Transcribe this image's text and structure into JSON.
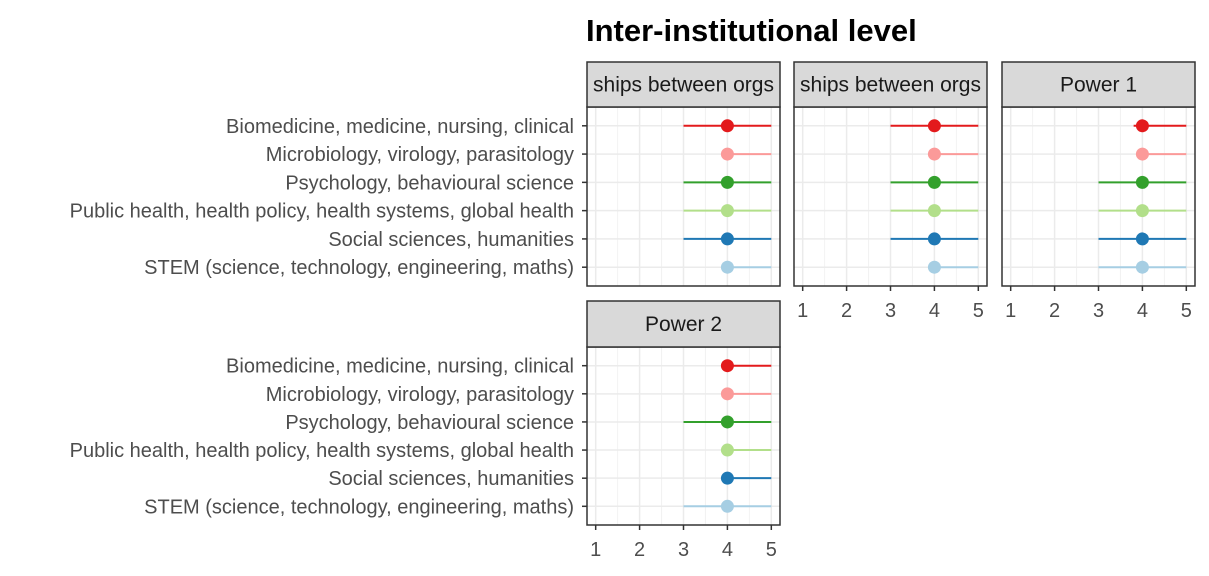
{
  "chart_data": {
    "type": "scatter",
    "title": "Inter-institutional level",
    "xlim": [
      1,
      5
    ],
    "x_ticks": [
      "1",
      "2",
      "3",
      "4",
      "5"
    ],
    "categories": [
      "Biomedicine, medicine, nursing, clinical",
      "Microbiology, virology, parasitology",
      "Psychology, behavioural science",
      "Public health, health policy, health systems, global health",
      "Social sciences, humanities",
      "STEM (science, technology, engineering, maths)"
    ],
    "colors": [
      "#e31a1c",
      "#fb9a99",
      "#33a02c",
      "#b2df8a",
      "#1f78b4",
      "#a6cee3"
    ],
    "grid": true,
    "legend": "none",
    "panels": [
      {
        "strip": "ships between orgs",
        "points": [
          {
            "median": 4,
            "low": 3,
            "high": 5
          },
          {
            "median": 4,
            "low": 4,
            "high": 5
          },
          {
            "median": 4,
            "low": 3,
            "high": 5
          },
          {
            "median": 4,
            "low": 3,
            "high": 5
          },
          {
            "median": 4,
            "low": 3,
            "high": 5
          },
          {
            "median": 4,
            "low": 4,
            "high": 5
          }
        ]
      },
      {
        "strip": "ships between orgs",
        "points": [
          {
            "median": 4,
            "low": 3,
            "high": 5
          },
          {
            "median": 4,
            "low": 4,
            "high": 5
          },
          {
            "median": 4,
            "low": 3,
            "high": 5
          },
          {
            "median": 4,
            "low": 3,
            "high": 5
          },
          {
            "median": 4,
            "low": 3,
            "high": 5
          },
          {
            "median": 4,
            "low": 4,
            "high": 5
          }
        ]
      },
      {
        "strip": "Power 1",
        "points": [
          {
            "median": 4,
            "low": 3.8,
            "high": 5
          },
          {
            "median": 4,
            "low": 4,
            "high": 5
          },
          {
            "median": 4,
            "low": 3,
            "high": 5
          },
          {
            "median": 4,
            "low": 3,
            "high": 5
          },
          {
            "median": 4,
            "low": 3,
            "high": 5
          },
          {
            "median": 4,
            "low": 3,
            "high": 5
          }
        ]
      },
      {
        "strip": "Power 2",
        "points": [
          {
            "median": 4,
            "low": 4,
            "high": 5
          },
          {
            "median": 4,
            "low": 4,
            "high": 5
          },
          {
            "median": 4,
            "low": 3,
            "high": 5
          },
          {
            "median": 4,
            "low": 4,
            "high": 5
          },
          {
            "median": 4,
            "low": 4,
            "high": 5
          },
          {
            "median": 4,
            "low": 3,
            "high": 5
          }
        ]
      }
    ]
  }
}
